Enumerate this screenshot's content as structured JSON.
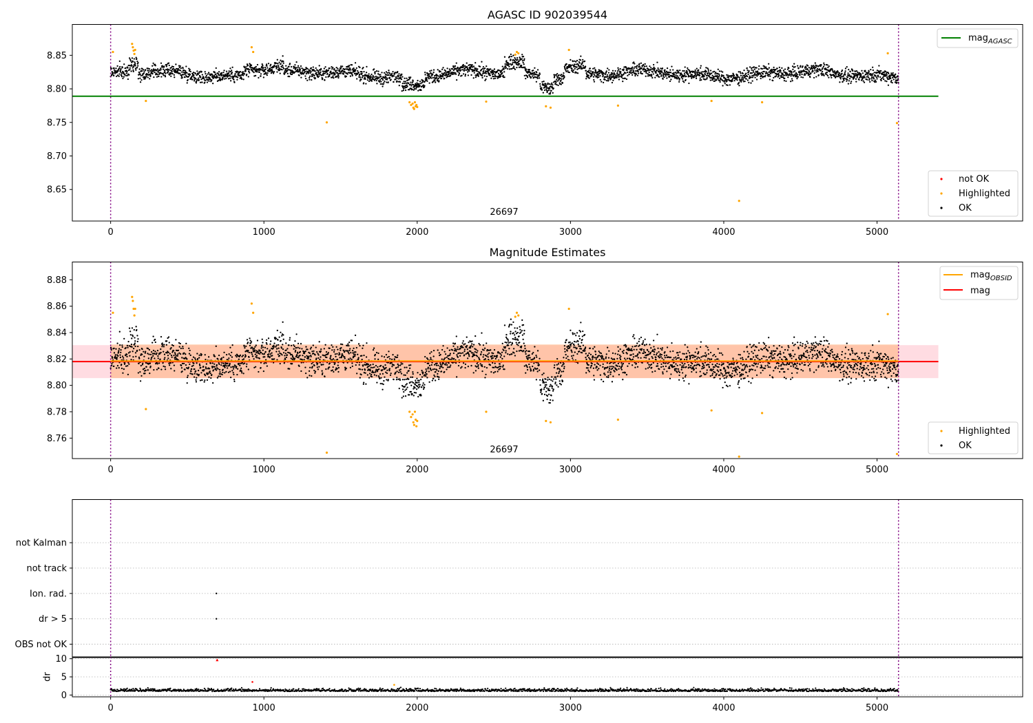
{
  "chart_data": [
    {
      "type": "scatter",
      "title": "AGASC ID 902039544",
      "xlim": [
        -250,
        5950
      ],
      "ylim": [
        8.603,
        8.896
      ],
      "xticks": [
        0,
        1000,
        2000,
        3000,
        4000,
        5000
      ],
      "yticks": [
        8.65,
        8.7,
        8.75,
        8.8,
        8.85
      ],
      "ytick_labels": [
        "8.65",
        "8.70",
        "8.75",
        "8.80",
        "8.85"
      ],
      "obsid_label": "26697",
      "obsid_label_x": 2550,
      "obs_boundaries": [
        0,
        5140
      ],
      "hlines": [
        {
          "name": "mag_AGASC",
          "y": 8.789,
          "x_range": [
            -250,
            5400
          ],
          "color": "#008000"
        }
      ],
      "legend_lines": [
        {
          "label": "mag",
          "sub": "AGASC",
          "color": "#008000"
        }
      ],
      "legend_points": [
        {
          "label": "not OK",
          "color": "#ff0000"
        },
        {
          "label": "Highlighted",
          "color": "#ffa500"
        },
        {
          "label": "OK",
          "color": "#000000"
        }
      ],
      "ok_series": {
        "name": "OK",
        "color": "#000000",
        "x_range": [
          0,
          5140
        ],
        "mean": 8.822,
        "spread": 0.009
      },
      "highlighted": {
        "name": "Highlighted",
        "color": "#ffa500",
        "points": [
          [
            15,
            8.855
          ],
          [
            140,
            8.867
          ],
          [
            145,
            8.862
          ],
          [
            150,
            8.857
          ],
          [
            155,
            8.852
          ],
          [
            160,
            8.858
          ],
          [
            230,
            8.782
          ],
          [
            920,
            8.862
          ],
          [
            930,
            8.855
          ],
          [
            1410,
            8.75
          ],
          [
            1950,
            8.78
          ],
          [
            1960,
            8.776
          ],
          [
            1970,
            8.778
          ],
          [
            1975,
            8.772
          ],
          [
            1980,
            8.77
          ],
          [
            1985,
            8.78
          ],
          [
            1990,
            8.774
          ],
          [
            1995,
            8.776
          ],
          [
            2000,
            8.773
          ],
          [
            2450,
            8.781
          ],
          [
            2640,
            8.851
          ],
          [
            2650,
            8.855
          ],
          [
            2660,
            8.853
          ],
          [
            2840,
            8.774
          ],
          [
            2870,
            8.772
          ],
          [
            2990,
            8.858
          ],
          [
            3310,
            8.775
          ],
          [
            3920,
            8.782
          ],
          [
            4100,
            8.633
          ],
          [
            4250,
            8.78
          ],
          [
            5070,
            8.853
          ],
          [
            5130,
            8.749
          ]
        ]
      }
    },
    {
      "type": "scatter",
      "title": "Magnitude Estimates",
      "xlim": [
        -250,
        5950
      ],
      "ylim": [
        8.7445,
        8.8935
      ],
      "xticks": [
        0,
        1000,
        2000,
        3000,
        4000,
        5000
      ],
      "yticks": [
        8.76,
        8.78,
        8.8,
        8.82,
        8.84,
        8.86,
        8.88
      ],
      "ytick_labels": [
        "8.76",
        "8.78",
        "8.80",
        "8.82",
        "8.84",
        "8.86",
        "8.88"
      ],
      "obsid_label": "26697",
      "obsid_label_x": 2550,
      "obs_boundaries": [
        0,
        5140
      ],
      "bands": [
        {
          "name": "mag band",
          "y_range": [
            8.8055,
            8.8305
          ],
          "x_range": [
            -250,
            5400
          ],
          "color": "#ffc0cb"
        },
        {
          "name": "mag_OBSID band",
          "y_range": [
            8.8055,
            8.831
          ],
          "x_range": [
            0,
            5140
          ],
          "color": "#ffb07a"
        }
      ],
      "hlines": [
        {
          "name": "mag",
          "y": 8.818,
          "x_range": [
            -250,
            5400
          ],
          "color": "#ff0000"
        },
        {
          "name": "mag_OBSID",
          "y": 8.8185,
          "x_range": [
            0,
            5140
          ],
          "color": "#ffa500"
        }
      ],
      "legend_lines": [
        {
          "label": "mag",
          "sub": "OBSID",
          "color": "#ffa500"
        },
        {
          "label": "mag",
          "sub": "",
          "color": "#ff0000"
        }
      ],
      "legend_points": [
        {
          "label": "Highlighted",
          "color": "#ffa500"
        },
        {
          "label": "OK",
          "color": "#000000"
        }
      ],
      "ok_series": {
        "name": "OK",
        "color": "#000000",
        "x_range": [
          0,
          5140
        ],
        "mean": 8.818,
        "spread": 0.011
      },
      "highlighted": {
        "name": "Highlighted",
        "color": "#ffa500",
        "points": [
          [
            15,
            8.855
          ],
          [
            140,
            8.867
          ],
          [
            145,
            8.864
          ],
          [
            150,
            8.858
          ],
          [
            155,
            8.853
          ],
          [
            160,
            8.858
          ],
          [
            230,
            8.782
          ],
          [
            920,
            8.862
          ],
          [
            930,
            8.855
          ],
          [
            1410,
            8.749
          ],
          [
            1950,
            8.78
          ],
          [
            1960,
            8.776
          ],
          [
            1970,
            8.778
          ],
          [
            1975,
            8.772
          ],
          [
            1980,
            8.77
          ],
          [
            1985,
            8.78
          ],
          [
            1990,
            8.774
          ],
          [
            1995,
            8.769
          ],
          [
            2000,
            8.773
          ],
          [
            2450,
            8.78
          ],
          [
            2640,
            8.852
          ],
          [
            2650,
            8.855
          ],
          [
            2660,
            8.853
          ],
          [
            2840,
            8.773
          ],
          [
            2870,
            8.772
          ],
          [
            2990,
            8.858
          ],
          [
            3310,
            8.774
          ],
          [
            3920,
            8.781
          ],
          [
            4100,
            8.746
          ],
          [
            4250,
            8.779
          ],
          [
            5070,
            8.854
          ],
          [
            5130,
            8.748
          ]
        ]
      }
    },
    {
      "type": "scatter",
      "title": "",
      "ylim": [
        -0.5,
        5.7
      ],
      "xlim": [
        -250,
        5950
      ],
      "ytick_labels": [
        "OBS not OK",
        "dr > 5",
        "Ion. rad.",
        "not track",
        "not Kalman"
      ],
      "obs_boundaries": [
        0,
        5140
      ],
      "flag_points": [
        {
          "flag": "Ion. rad.",
          "x": 690
        },
        {
          "flag": "dr > 5",
          "x": 690
        }
      ]
    },
    {
      "type": "scatter",
      "title": "",
      "ylabel": "dr",
      "xlim": [
        -250,
        5950
      ],
      "ylim": [
        -0.5,
        10.5
      ],
      "xticks": [
        0,
        1000,
        2000,
        3000,
        4000,
        5000
      ],
      "yticks": [
        0,
        5,
        10
      ],
      "ytick_labels": [
        "0",
        "5",
        "10"
      ],
      "obs_boundaries": [
        0,
        5140
      ],
      "ok_series": {
        "name": "dr",
        "color": "#000000",
        "x_range": [
          0,
          5140
        ],
        "mean": 1.2,
        "spread": 0.4
      },
      "special_points": [
        {
          "x": 695,
          "y": 9.7,
          "color": "#ff0000",
          "marker": "triangle"
        },
        {
          "x": 925,
          "y": 3.6,
          "color": "#ff0000",
          "marker": "dot"
        },
        {
          "x": 1850,
          "y": 2.8,
          "color": "#ffa500",
          "marker": "dot"
        }
      ]
    }
  ]
}
